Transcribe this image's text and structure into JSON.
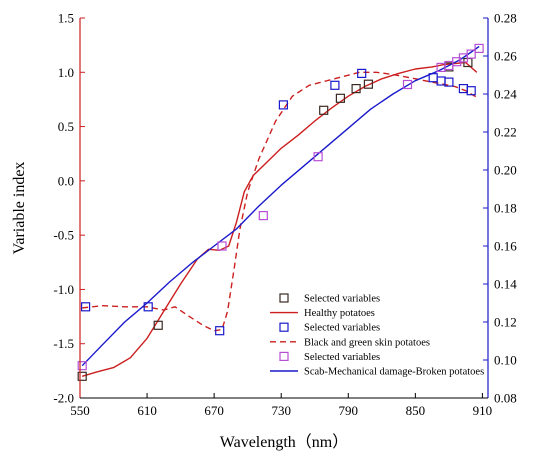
{
  "chart_data": {
    "type": "line",
    "xlabel": "Wavelength（nm）",
    "ylabel": "Variable index",
    "xlim": [
      550,
      915
    ],
    "ylim_left": [
      -2.0,
      1.5
    ],
    "ylim_right": [
      0.08,
      0.28
    ],
    "x_ticks": [
      "550",
      "610",
      "670",
      "730",
      "790",
      "850",
      "910"
    ],
    "y_left_ticks": [
      "-2.0",
      "-1.5",
      "-1.0",
      "-0.5",
      "0.0",
      "0.5",
      "1.0",
      "1.5"
    ],
    "y_right_ticks": [
      "0.08",
      "0.10",
      "0.12",
      "0.14",
      "0.16",
      "0.18",
      "0.20",
      "0.22",
      "0.24",
      "0.26",
      "0.28"
    ],
    "colors": {
      "red": "#cc1f1f",
      "blue": "#1a1acc",
      "purple": "#b64fd6",
      "brown": "#3a2a22"
    },
    "legend_position": "bottom-right",
    "legend": [
      {
        "label": "Selected variables",
        "kind": "marker",
        "color": "#3a2a22"
      },
      {
        "label": "Healthy potatoes",
        "kind": "solid",
        "color": "#cc1f1f"
      },
      {
        "label": "Selected variables",
        "kind": "marker",
        "color": "#1a1acc"
      },
      {
        "label": "Black and green skin potatoes",
        "kind": "dashed",
        "color": "#cc1f1f"
      },
      {
        "label": "Selected variables",
        "kind": "marker",
        "color": "#b64fd6"
      },
      {
        "label": "Scab-Mechanical damage-Broken potatoes",
        "kind": "solid",
        "color": "#1a1acc"
      }
    ],
    "series": [
      {
        "name": "Healthy potatoes",
        "axis": "left",
        "style": "solid",
        "color": "#cc1f1f",
        "x": [
          552,
          565,
          580,
          595,
          610,
          625,
          640,
          655,
          665,
          675,
          683,
          690,
          697,
          705,
          715,
          730,
          745,
          760,
          775,
          790,
          805,
          820,
          835,
          850,
          865,
          875,
          885,
          895,
          905
        ],
        "y": [
          -1.8,
          -1.76,
          -1.72,
          -1.63,
          -1.45,
          -1.2,
          -0.95,
          -0.72,
          -0.63,
          -0.64,
          -0.6,
          -0.38,
          -0.1,
          0.05,
          0.15,
          0.3,
          0.42,
          0.55,
          0.67,
          0.78,
          0.87,
          0.94,
          0.99,
          1.03,
          1.05,
          1.07,
          1.08,
          1.09,
          1.0
        ]
      },
      {
        "name": "Black and green skin potatoes",
        "axis": "left",
        "style": "dashed",
        "color": "#cc1f1f",
        "x": [
          552,
          570,
          590,
          610,
          625,
          635,
          648,
          660,
          670,
          677,
          682,
          688,
          693,
          700,
          710,
          725,
          740,
          755,
          770,
          785,
          800,
          815,
          830,
          845,
          855,
          865,
          875,
          885,
          895,
          905
        ],
        "y": [
          -1.17,
          -1.15,
          -1.16,
          -1.16,
          -1.19,
          -1.16,
          -1.25,
          -1.33,
          -1.38,
          -1.37,
          -1.2,
          -0.8,
          -0.45,
          -0.1,
          0.2,
          0.55,
          0.78,
          0.88,
          0.92,
          0.96,
          1.0,
          1.0,
          0.98,
          0.95,
          0.93,
          0.91,
          0.89,
          0.87,
          0.83,
          0.77
        ]
      },
      {
        "name": "Scab-Mechanical damage-Broken potatoes",
        "axis": "right",
        "style": "solid",
        "color": "#1a1acc",
        "x": [
          552,
          570,
          590,
          610,
          630,
          650,
          670,
          690,
          710,
          730,
          750,
          770,
          790,
          810,
          830,
          850,
          870,
          890,
          907
        ],
        "y": [
          0.097,
          0.108,
          0.12,
          0.13,
          0.141,
          0.151,
          0.16,
          0.169,
          0.181,
          0.192,
          0.202,
          0.212,
          0.222,
          0.232,
          0.24,
          0.247,
          0.252,
          0.258,
          0.265
        ]
      }
    ],
    "markers": [
      {
        "series": "Healthy potatoes",
        "color": "#3a2a22",
        "axis": "left",
        "x": [
          552,
          620,
          768,
          783,
          797,
          808,
          880,
          897
        ],
        "y": [
          -1.8,
          -1.33,
          0.65,
          0.76,
          0.85,
          0.89,
          1.05,
          1.09
        ]
      },
      {
        "series": "Black and green skin potatoes",
        "color": "#1a1acc",
        "axis": "left",
        "x": [
          555,
          611,
          675,
          732,
          778,
          802,
          866,
          873,
          880,
          893,
          900
        ],
        "y": [
          -1.16,
          -1.16,
          -1.38,
          0.7,
          0.88,
          0.99,
          0.95,
          0.92,
          0.91,
          0.85,
          0.83
        ]
      },
      {
        "series": "Scab-Mechanical damage-Broken potatoes",
        "color": "#b64fd6",
        "axis": "right",
        "x": [
          552,
          677,
          714,
          763,
          843,
          873,
          880,
          887,
          893,
          900,
          907
        ],
        "y": [
          0.097,
          0.16,
          0.176,
          0.207,
          0.245,
          0.254,
          0.255,
          0.257,
          0.259,
          0.261,
          0.264
        ]
      }
    ]
  }
}
